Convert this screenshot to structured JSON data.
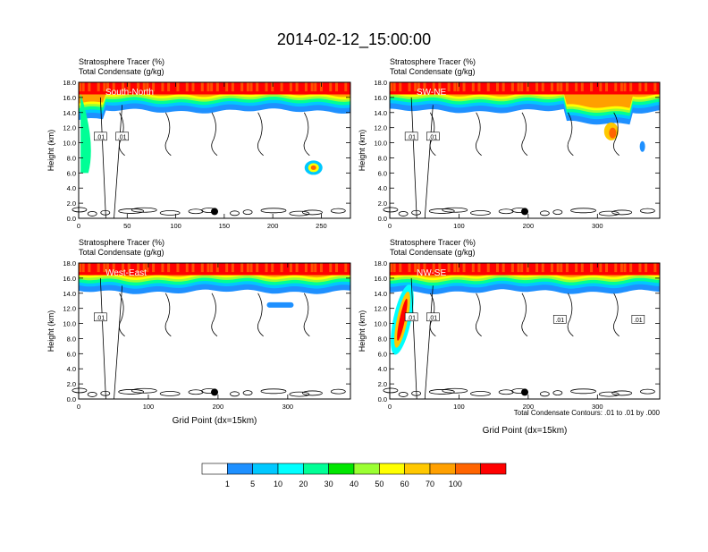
{
  "title": "2014-02-12_15:00:00",
  "colorbar": {
    "colors": [
      "#ffffff",
      "#1e90ff",
      "#00c8ff",
      "#00ffff",
      "#00ff96",
      "#00e600",
      "#9bff32",
      "#ffff00",
      "#ffc800",
      "#ffa000",
      "#ff6400",
      "#ff0000"
    ],
    "labels": [
      "1",
      "5",
      "10",
      "20",
      "30",
      "40",
      "50",
      "60",
      "70",
      "100"
    ]
  },
  "footnote": "Total Condensate Contours: .01 to .01 by .000",
  "chart_data": [
    {
      "type": "heatmap",
      "id": "south-north",
      "label": "South-North",
      "title_line1": "Stratosphere Tracer   (%)",
      "title_line2": "Total Condensate   (g/kg)",
      "ylabel": "Height (km)",
      "xlabel": "",
      "xlim": [
        0,
        280
      ],
      "ylim": [
        0,
        18
      ],
      "xticks": [
        0,
        50,
        100,
        150,
        200,
        250
      ],
      "yticks": [
        "0.0",
        "2.0",
        "4.0",
        "6.0",
        "8.0",
        "10.0",
        "12.0",
        "14.0",
        "16.0",
        "18.0"
      ],
      "marker_x": 140,
      "contour_labels": [
        ".01",
        ".01"
      ]
    },
    {
      "type": "heatmap",
      "id": "sw-ne",
      "label": "SW-NE",
      "title_line1": "Stratosphere Tracer   (%)",
      "title_line2": "Total Condensate   (g/kg)",
      "ylabel": "Height (km)",
      "xlabel": "",
      "xlim": [
        0,
        390
      ],
      "ylim": [
        0,
        18
      ],
      "xticks": [
        0,
        100,
        200,
        300
      ],
      "yticks": [
        "0.0",
        "2.0",
        "4.0",
        "6.0",
        "8.0",
        "10.0",
        "12.0",
        "14.0",
        "16.0",
        "18.0"
      ],
      "marker_x": 195,
      "contour_labels": [
        ".01",
        ".01"
      ]
    },
    {
      "type": "heatmap",
      "id": "west-east",
      "label": "West-East",
      "title_line1": "Stratosphere Tracer   (%)",
      "title_line2": "Total Condensate   (g/kg)",
      "ylabel": "Height (km)",
      "xlabel": "Grid Point (dx=15km)",
      "xlim": [
        0,
        390
      ],
      "ylim": [
        0,
        18
      ],
      "xticks": [
        0,
        100,
        200,
        300
      ],
      "yticks": [
        "0.0",
        "2.0",
        "4.0",
        "6.0",
        "8.0",
        "10.0",
        "12.0",
        "14.0",
        "16.0",
        "18.0"
      ],
      "marker_x": 195,
      "contour_labels": [
        ".01"
      ]
    },
    {
      "type": "heatmap",
      "id": "nw-se",
      "label": "NW-SE",
      "title_line1": "Stratosphere Tracer   (%)",
      "title_line2": "Total Condensate   (g/kg)",
      "ylabel": "Height (km)",
      "xlabel": "Grid Point (dx=15km)",
      "xlim": [
        0,
        390
      ],
      "ylim": [
        0,
        18
      ],
      "xticks": [
        0,
        100,
        200,
        300
      ],
      "yticks": [
        "0.0",
        "2.0",
        "4.0",
        "6.0",
        "8.0",
        "10.0",
        "12.0",
        "14.0",
        "16.0",
        "18.0"
      ],
      "marker_x": 195,
      "contour_labels": [
        ".01",
        ".01",
        ".01",
        ".01"
      ]
    }
  ]
}
